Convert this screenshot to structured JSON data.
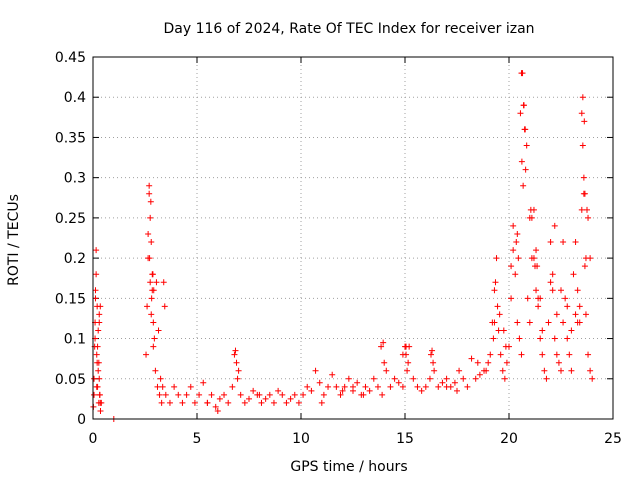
{
  "chart_data": {
    "type": "scatter",
    "title": "Day 116 of 2024, Rate Of TEC Index for receiver izan",
    "xlabel": "GPS time / hours",
    "ylabel": "ROTI / TECUs",
    "xlim": [
      0,
      25
    ],
    "ylim": [
      0,
      0.45
    ],
    "xticks": [
      0,
      5,
      10,
      15,
      20,
      25
    ],
    "xtick_labels": [
      "0",
      "5",
      "10",
      "15",
      "20",
      "25"
    ],
    "yticks": [
      0,
      0.05,
      0.1,
      0.15,
      0.2,
      0.25,
      0.3,
      0.35,
      0.4,
      0.45
    ],
    "ytick_labels": [
      "0",
      "0.05",
      "0.1",
      "0.15",
      "0.2",
      "0.25",
      "0.3",
      "0.35",
      "0.4",
      "0.45"
    ],
    "grid": true,
    "marker": "+",
    "color": "#ff0000",
    "series": [
      {
        "name": "ROTI",
        "x": [
          0.02,
          0.05,
          0.08,
          0.1,
          0.12,
          0.15,
          0.18,
          0.2,
          0.22,
          0.25,
          0.28,
          0.3,
          0.33,
          0.36,
          0.4,
          0.05,
          0.1,
          0.15,
          0.2,
          0.25,
          0.3,
          0.35,
          0.12,
          0.18,
          0.22,
          0.28,
          0.32,
          2.55,
          2.6,
          2.65,
          2.7,
          2.75,
          2.8,
          2.85,
          2.9,
          2.95,
          3.0,
          3.1,
          3.2,
          3.3,
          2.7,
          2.75,
          2.8,
          2.85,
          2.9,
          3.05,
          3.15,
          3.25,
          3.35,
          3.5,
          3.7,
          3.9,
          4.1,
          4.3,
          4.5,
          4.7,
          4.9,
          5.1,
          5.3,
          5.5,
          5.7,
          5.9,
          6.1,
          6.3,
          6.5,
          6.7,
          6.85,
          6.9,
          6.95,
          7.1,
          7.3,
          7.5,
          7.7,
          7.9,
          8.1,
          8.3,
          8.5,
          8.7,
          8.9,
          9.1,
          9.3,
          9.5,
          9.7,
          9.9,
          10.1,
          10.3,
          10.5,
          10.7,
          10.9,
          11.1,
          11.3,
          11.5,
          11.7,
          11.9,
          12.1,
          12.3,
          12.5,
          12.7,
          12.9,
          13.1,
          13.3,
          13.5,
          13.7,
          13.9,
          13.95,
          14.1,
          14.3,
          14.5,
          14.7,
          14.9,
          15.0,
          15.05,
          15.1,
          15.2,
          15.4,
          15.6,
          15.8,
          16.0,
          16.2,
          16.3,
          16.4,
          16.6,
          16.8,
          17.0,
          17.2,
          17.4,
          17.6,
          17.8,
          18.0,
          18.2,
          18.4,
          18.6,
          18.8,
          19.0,
          19.2,
          19.3,
          19.4,
          19.5,
          19.6,
          19.7,
          19.8,
          19.9,
          20.0,
          20.1,
          20.2,
          20.3,
          20.4,
          20.5,
          20.6,
          20.65,
          20.7,
          20.75,
          20.8,
          20.9,
          21.0,
          21.1,
          21.2,
          21.3,
          21.4,
          21.5,
          21.6,
          21.7,
          21.8,
          21.9,
          22.0,
          22.1,
          22.2,
          22.3,
          22.4,
          22.5,
          22.6,
          22.7,
          22.8,
          22.9,
          23.0,
          23.1,
          23.2,
          23.3,
          23.4,
          23.5,
          23.55,
          23.6,
          23.65,
          23.7,
          23.8,
          23.9,
          24.0,
          20.35,
          20.4,
          20.45,
          20.55,
          20.6,
          20.62,
          20.68,
          20.72,
          20.78,
          20.85,
          21.0,
          21.05,
          21.3,
          21.35,
          21.5,
          22.2,
          22.6,
          23.5,
          23.55,
          23.6,
          23.62,
          23.65,
          23.7,
          23.75,
          19.35,
          19.45,
          19.55,
          20.1,
          20.2,
          21.1,
          21.2,
          21.25,
          21.4,
          21.6,
          22.0,
          22.1,
          22.3,
          22.5,
          22.8,
          23.0,
          23.2,
          23.3,
          23.4,
          23.8,
          23.9,
          0.3,
          0.35,
          2.65,
          2.72,
          2.78,
          2.82,
          2.88,
          2.92,
          3.4,
          3.45,
          6.8,
          7.0,
          13.85,
          14.0,
          14.9,
          15.05,
          15.15,
          16.25,
          16.35,
          18.5,
          18.9,
          19.1,
          19.25,
          19.3,
          19.75,
          19.85,
          1.0,
          5.5,
          6.0,
          8.0,
          11.0,
          12.0,
          12.5,
          13.0,
          17.0,
          17.5
        ],
        "y": [
          0.015,
          0.05,
          0.09,
          0.12,
          0.16,
          0.21,
          0.08,
          0.14,
          0.04,
          0.06,
          0.02,
          0.13,
          0.03,
          0.01,
          0.02,
          0.03,
          0.1,
          0.18,
          0.07,
          0.11,
          0.05,
          0.02,
          0.15,
          0.04,
          0.09,
          0.07,
          0.03,
          0.08,
          0.14,
          0.2,
          0.28,
          0.25,
          0.22,
          0.18,
          0.12,
          0.1,
          0.06,
          0.04,
          0.03,
          0.02,
          0.29,
          0.17,
          0.13,
          0.16,
          0.09,
          0.17,
          0.11,
          0.05,
          0.04,
          0.03,
          0.02,
          0.04,
          0.03,
          0.02,
          0.03,
          0.04,
          0.02,
          0.03,
          0.045,
          0.02,
          0.03,
          0.015,
          0.025,
          0.03,
          0.02,
          0.04,
          0.085,
          0.07,
          0.05,
          0.03,
          0.02,
          0.025,
          0.035,
          0.03,
          0.02,
          0.025,
          0.03,
          0.02,
          0.035,
          0.03,
          0.02,
          0.025,
          0.03,
          0.02,
          0.03,
          0.04,
          0.035,
          0.06,
          0.045,
          0.03,
          0.04,
          0.055,
          0.04,
          0.03,
          0.04,
          0.05,
          0.035,
          0.045,
          0.03,
          0.04,
          0.035,
          0.05,
          0.04,
          0.03,
          0.095,
          0.06,
          0.04,
          0.05,
          0.045,
          0.04,
          0.09,
          0.08,
          0.06,
          0.09,
          0.05,
          0.04,
          0.035,
          0.04,
          0.05,
          0.085,
          0.06,
          0.04,
          0.045,
          0.05,
          0.04,
          0.045,
          0.06,
          0.05,
          0.04,
          0.075,
          0.05,
          0.055,
          0.06,
          0.07,
          0.12,
          0.16,
          0.2,
          0.11,
          0.08,
          0.06,
          0.05,
          0.07,
          0.09,
          0.15,
          0.24,
          0.18,
          0.12,
          0.1,
          0.08,
          0.43,
          0.39,
          0.36,
          0.31,
          0.15,
          0.12,
          0.2,
          0.26,
          0.16,
          0.14,
          0.1,
          0.08,
          0.06,
          0.05,
          0.12,
          0.22,
          0.16,
          0.1,
          0.08,
          0.07,
          0.06,
          0.12,
          0.15,
          0.1,
          0.08,
          0.06,
          0.18,
          0.22,
          0.16,
          0.12,
          0.26,
          0.4,
          0.28,
          0.19,
          0.13,
          0.08,
          0.06,
          0.05,
          0.22,
          0.23,
          0.2,
          0.38,
          0.43,
          0.32,
          0.29,
          0.39,
          0.36,
          0.34,
          0.25,
          0.26,
          0.21,
          0.19,
          0.15,
          0.24,
          0.22,
          0.38,
          0.34,
          0.3,
          0.37,
          0.28,
          0.2,
          0.26,
          0.17,
          0.14,
          0.13,
          0.19,
          0.21,
          0.25,
          0.2,
          0.19,
          0.15,
          0.11,
          0.17,
          0.18,
          0.13,
          0.16,
          0.14,
          0.11,
          0.13,
          0.12,
          0.14,
          0.25,
          0.2,
          0.12,
          0.14,
          0.23,
          0.2,
          0.27,
          0.15,
          0.18,
          0.16,
          0.17,
          0.14,
          0.08,
          0.06,
          0.09,
          0.07,
          0.08,
          0.09,
          0.07,
          0.08,
          0.07,
          0.07,
          0.06,
          0.08,
          0.1,
          0.12,
          0.11,
          0.09,
          0.0,
          0.02,
          0.01,
          0.03,
          0.02,
          0.035,
          0.04,
          0.03,
          0.04,
          0.035
        ]
      }
    ]
  }
}
